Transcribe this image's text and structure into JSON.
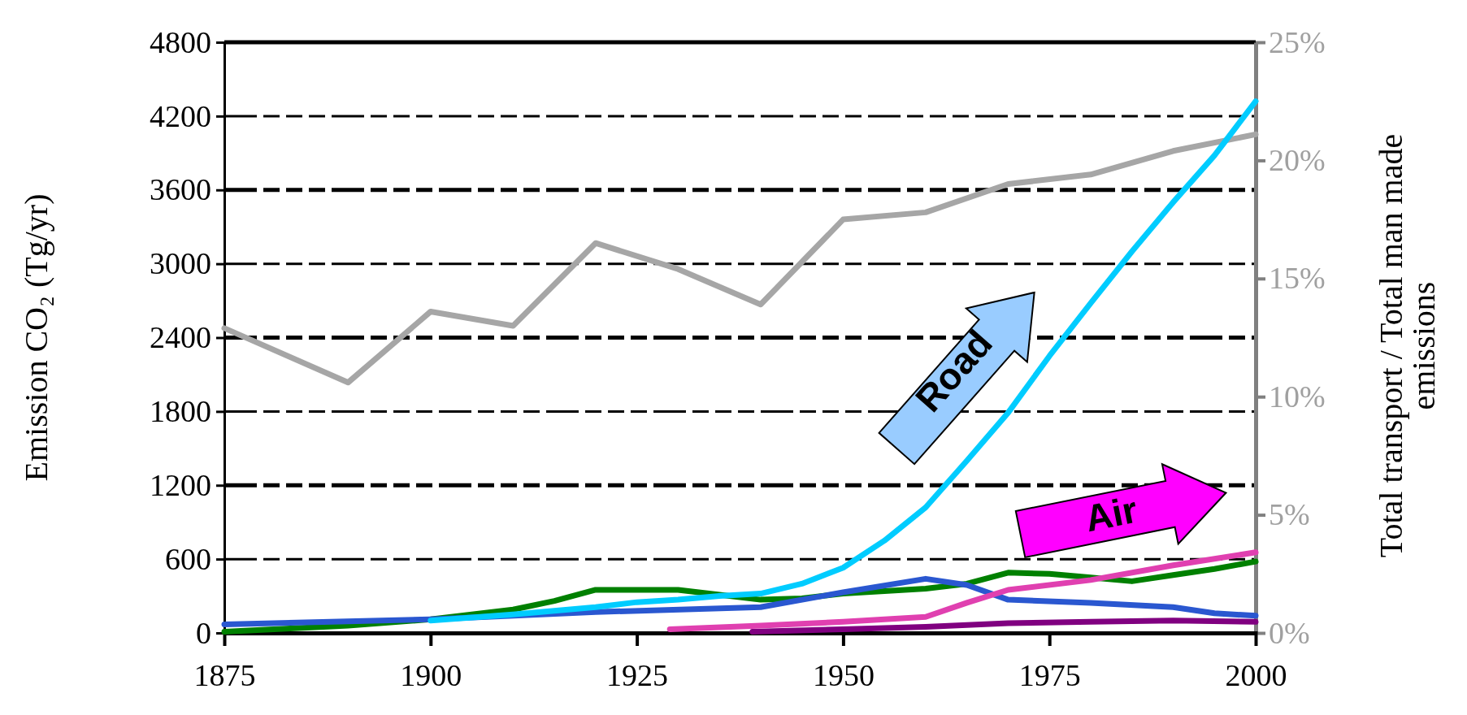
{
  "chart_data": {
    "type": "line",
    "ylabel": "Emission CO₂ (Tg/yr)",
    "y2label": "Total transport / Total man made emissions",
    "xlim": [
      1875,
      2000
    ],
    "xticks": [
      1875,
      1900,
      1925,
      1950,
      1975,
      2000
    ],
    "ylim": [
      0,
      4800
    ],
    "yticks": [
      0,
      600,
      1200,
      1800,
      2400,
      3000,
      3600,
      4200,
      4800
    ],
    "y2lim": [
      0,
      25
    ],
    "y2ticks": [
      {
        "value": 0,
        "label": "0%"
      },
      {
        "value": 5,
        "label": "5%"
      },
      {
        "value": 10,
        "label": "10%"
      },
      {
        "value": 15,
        "label": "15%"
      },
      {
        "value": 20,
        "label": "20%"
      },
      {
        "value": 25,
        "label": "25%"
      }
    ],
    "grid": "y",
    "legend": false,
    "series": [
      {
        "color": "#a6a6a6",
        "axis": "y2",
        "x": [
          1875,
          1890,
          1900,
          1910,
          1920,
          1930,
          1940,
          1950,
          1960,
          1970,
          1980,
          1990,
          2000
        ],
        "values": [
          12.9,
          10.6,
          13.6,
          13.0,
          16.5,
          15.4,
          13.9,
          17.5,
          17.8,
          19.0,
          19.4,
          20.4,
          21.1
        ]
      },
      {
        "color": "#008000",
        "x": [
          1875,
          1890,
          1900,
          1910,
          1915,
          1920,
          1930,
          1935,
          1940,
          1945,
          1950,
          1960,
          1965,
          1970,
          1975,
          1980,
          1985,
          1990,
          1995,
          2000
        ],
        "values": [
          10,
          60,
          110,
          190,
          260,
          350,
          350,
          310,
          270,
          280,
          320,
          360,
          400,
          490,
          480,
          450,
          420,
          470,
          520,
          580
        ]
      },
      {
        "color": "#2a57d0",
        "x": [
          1875,
          1900,
          1920,
          1940,
          1950,
          1960,
          1965,
          1970,
          1980,
          1990,
          1995,
          2000
        ],
        "values": [
          70,
          110,
          170,
          210,
          330,
          440,
          390,
          270,
          245,
          210,
          160,
          140
        ]
      },
      {
        "name": "Road",
        "color": "#00ccff",
        "x": [
          1900,
          1910,
          1920,
          1925,
          1930,
          1935,
          1940,
          1945,
          1950,
          1955,
          1960,
          1965,
          1970,
          1975,
          1980,
          1985,
          1990,
          1995,
          2000
        ],
        "values": [
          100,
          150,
          210,
          250,
          270,
          300,
          320,
          400,
          530,
          750,
          1020,
          1400,
          1790,
          2250,
          2680,
          3100,
          3500,
          3880,
          4320
        ]
      },
      {
        "color": "#800080",
        "x": [
          1939,
          1950,
          1960,
          1970,
          1980,
          1990,
          2000
        ],
        "values": [
          10,
          30,
          50,
          80,
          90,
          100,
          90
        ]
      },
      {
        "name": "Air",
        "color": "#e040b0",
        "x": [
          1929,
          1940,
          1950,
          1955,
          1960,
          1965,
          1970,
          1980,
          1990,
          2000
        ],
        "values": [
          30,
          60,
          90,
          110,
          130,
          245,
          350,
          430,
          550,
          655
        ]
      }
    ]
  }
}
